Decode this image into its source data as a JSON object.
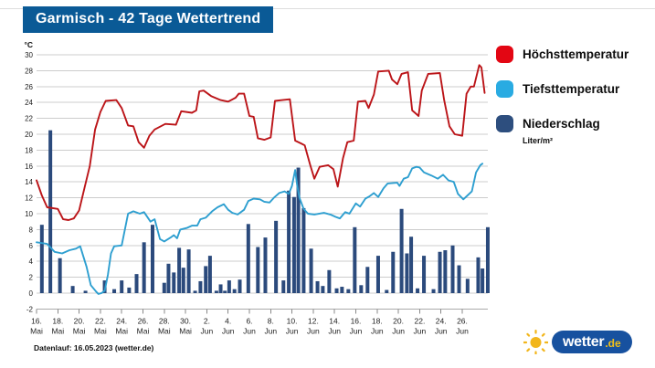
{
  "title": "Garmisch - 42 Tage Wettertrend",
  "footer": "Datenlauf: 16.05.2023 (wetter.de)",
  "logo": {
    "brand": "wetter",
    "tld": ".de",
    "pill_color": "#17519f",
    "sun_color": "#f2b61c"
  },
  "legend": {
    "items": [
      {
        "label": "Höchsttemperatur",
        "color": "#e30613"
      },
      {
        "label": "Tiefsttemperatur",
        "color": "#29abe2"
      },
      {
        "label": "Niederschlag",
        "color": "#2d4e7e"
      }
    ],
    "unit": "Liter/m²"
  },
  "chart_data": {
    "type": "line+bar",
    "title": "Garmisch - 42 Tage Wettertrend",
    "y_axis": {
      "unit": "°C",
      "min": -2,
      "max": 30,
      "tick_step": 2,
      "grid": true
    },
    "x_axis": {
      "tick_positions": [
        0,
        2,
        4,
        6,
        8,
        10,
        12,
        14,
        16,
        18,
        20,
        22,
        24,
        26,
        28,
        30,
        32,
        34,
        36,
        38,
        40
      ],
      "tick_labels": [
        [
          "16.",
          "Mai"
        ],
        [
          "18.",
          "Mai"
        ],
        [
          "20.",
          "Mai"
        ],
        [
          "22.",
          "Mai"
        ],
        [
          "24.",
          "Mai"
        ],
        [
          "26.",
          "Mai"
        ],
        [
          "28.",
          "Mai"
        ],
        [
          "30.",
          "Mai"
        ],
        [
          "2.",
          "Jun"
        ],
        [
          "4.",
          "Jun"
        ],
        [
          "6.",
          "Jun"
        ],
        [
          "8.",
          "Jun"
        ],
        [
          "10.",
          "Jun"
        ],
        [
          "12.",
          "Jun"
        ],
        [
          "14.",
          "Jun"
        ],
        [
          "16.",
          "Jun"
        ],
        [
          "18.",
          "Jun"
        ],
        [
          "20.",
          "Jun"
        ],
        [
          "22.",
          "Jun"
        ],
        [
          "24.",
          "Jun"
        ],
        [
          "26.",
          "Jun"
        ]
      ]
    },
    "series": [
      {
        "name": "Höchsttemperatur",
        "unit": "°C",
        "color": "#bb1418",
        "points": [
          [
            0,
            14.2
          ],
          [
            0.5,
            12.3
          ],
          [
            1,
            10.8
          ],
          [
            2,
            10.6
          ],
          [
            2.5,
            9.3
          ],
          [
            3,
            9.2
          ],
          [
            3.5,
            9.4
          ],
          [
            4,
            10.4
          ],
          [
            4.5,
            13.2
          ],
          [
            5,
            16.0
          ],
          [
            5.5,
            20.6
          ],
          [
            6,
            22.8
          ],
          [
            6.5,
            24.2
          ],
          [
            7.5,
            24.3
          ],
          [
            8,
            23.3
          ],
          [
            8.6,
            21.1
          ],
          [
            9.1,
            21.0
          ],
          [
            9.6,
            19.0
          ],
          [
            10.1,
            18.3
          ],
          [
            10.6,
            19.8
          ],
          [
            11.1,
            20.6
          ],
          [
            12.1,
            21.3
          ],
          [
            13.1,
            21.2
          ],
          [
            13.6,
            22.9
          ],
          [
            14.6,
            22.7
          ],
          [
            15.0,
            23.0
          ],
          [
            15.3,
            25.4
          ],
          [
            15.7,
            25.5
          ],
          [
            16.4,
            24.8
          ],
          [
            17.3,
            24.3
          ],
          [
            18,
            24.1
          ],
          [
            18.7,
            24.6
          ],
          [
            19,
            25.1
          ],
          [
            19.5,
            25.1
          ],
          [
            20,
            22.3
          ],
          [
            20.4,
            22.2
          ],
          [
            20.8,
            19.5
          ],
          [
            21.4,
            19.3
          ],
          [
            22,
            19.6
          ],
          [
            22.4,
            24.2
          ],
          [
            23.1,
            24.3
          ],
          [
            23.8,
            24.4
          ],
          [
            24.3,
            19.2
          ],
          [
            24.9,
            18.8
          ],
          [
            25.2,
            18.6
          ],
          [
            25.7,
            16.2
          ],
          [
            26.1,
            14.4
          ],
          [
            26.6,
            15.9
          ],
          [
            27.4,
            16.1
          ],
          [
            27.9,
            15.6
          ],
          [
            28.3,
            13.4
          ],
          [
            28.8,
            17.0
          ],
          [
            29.2,
            19.0
          ],
          [
            29.8,
            19.2
          ],
          [
            30.2,
            24.1
          ],
          [
            30.9,
            24.2
          ],
          [
            31.2,
            23.3
          ],
          [
            31.7,
            25.0
          ],
          [
            32.1,
            27.9
          ],
          [
            33.1,
            28.0
          ],
          [
            33.4,
            26.9
          ],
          [
            33.9,
            26.3
          ],
          [
            34.3,
            27.6
          ],
          [
            34.9,
            27.8
          ],
          [
            35.3,
            23.0
          ],
          [
            35.9,
            22.3
          ],
          [
            36.2,
            25.5
          ],
          [
            36.8,
            27.6
          ],
          [
            37.9,
            27.7
          ],
          [
            38.3,
            24.3
          ],
          [
            38.8,
            21.0
          ],
          [
            39.3,
            20.0
          ],
          [
            40,
            19.8
          ],
          [
            40.4,
            25.1
          ],
          [
            40.8,
            26.0
          ],
          [
            41.1,
            26.0
          ],
          [
            41.6,
            28.7
          ],
          [
            41.8,
            28.4
          ],
          [
            42.1,
            25.2
          ]
        ]
      },
      {
        "name": "Tiefsttemperatur",
        "unit": "°C",
        "color": "#2e9fd0",
        "points": [
          [
            0,
            6.4
          ],
          [
            1,
            6.2
          ],
          [
            1.7,
            5.2
          ],
          [
            2.4,
            5.0
          ],
          [
            3.1,
            5.4
          ],
          [
            3.7,
            5.6
          ],
          [
            4.1,
            5.9
          ],
          [
            4.7,
            3.3
          ],
          [
            5.1,
            1.0
          ],
          [
            5.6,
            0.2
          ],
          [
            5.8,
            -0.1
          ],
          [
            6.1,
            0.0
          ],
          [
            6.4,
            0.3
          ],
          [
            6.7,
            2.3
          ],
          [
            7,
            5.0
          ],
          [
            7.3,
            5.9
          ],
          [
            8,
            6.0
          ],
          [
            8.6,
            10.0
          ],
          [
            9.1,
            10.3
          ],
          [
            9.7,
            10.0
          ],
          [
            10.1,
            10.2
          ],
          [
            10.7,
            9.0
          ],
          [
            11.1,
            9.3
          ],
          [
            11.6,
            6.8
          ],
          [
            12,
            6.5
          ],
          [
            12.6,
            7.0
          ],
          [
            12.9,
            7.3
          ],
          [
            13.2,
            6.9
          ],
          [
            13.5,
            8.0
          ],
          [
            14.1,
            8.2
          ],
          [
            14.6,
            8.5
          ],
          [
            15.1,
            8.5
          ],
          [
            15.4,
            9.3
          ],
          [
            15.9,
            9.5
          ],
          [
            16.5,
            10.3
          ],
          [
            17,
            10.8
          ],
          [
            17.6,
            11.2
          ],
          [
            18,
            10.5
          ],
          [
            18.4,
            10.1
          ],
          [
            18.9,
            9.9
          ],
          [
            19.5,
            10.5
          ],
          [
            19.9,
            11.6
          ],
          [
            20.4,
            11.9
          ],
          [
            21,
            11.8
          ],
          [
            21.4,
            11.5
          ],
          [
            21.9,
            11.4
          ],
          [
            22.3,
            12.0
          ],
          [
            22.8,
            12.6
          ],
          [
            23.3,
            12.8
          ],
          [
            23.7,
            12.5
          ],
          [
            24,
            13.5
          ],
          [
            24.3,
            15.5
          ],
          [
            24.5,
            13.5
          ],
          [
            24.7,
            12.0
          ],
          [
            25.1,
            10.6
          ],
          [
            25.5,
            10.0
          ],
          [
            26.1,
            9.9
          ],
          [
            27,
            10.1
          ],
          [
            27.6,
            9.9
          ],
          [
            28.1,
            9.6
          ],
          [
            28.5,
            9.4
          ],
          [
            29,
            10.2
          ],
          [
            29.4,
            10.0
          ],
          [
            30,
            11.3
          ],
          [
            30.4,
            10.9
          ],
          [
            30.9,
            11.9
          ],
          [
            31.3,
            12.2
          ],
          [
            31.7,
            12.6
          ],
          [
            32.1,
            12.1
          ],
          [
            32.6,
            13.2
          ],
          [
            33,
            13.8
          ],
          [
            33.9,
            13.9
          ],
          [
            34.1,
            13.5
          ],
          [
            34.5,
            14.4
          ],
          [
            34.9,
            14.6
          ],
          [
            35.3,
            15.7
          ],
          [
            35.7,
            15.9
          ],
          [
            36,
            15.8
          ],
          [
            36.4,
            15.2
          ],
          [
            37.1,
            14.8
          ],
          [
            37.7,
            14.4
          ],
          [
            38.2,
            14.9
          ],
          [
            38.7,
            14.2
          ],
          [
            39.2,
            14.0
          ],
          [
            39.6,
            12.5
          ],
          [
            40.1,
            11.8
          ],
          [
            40.5,
            12.3
          ],
          [
            40.9,
            12.8
          ],
          [
            41.3,
            15.2
          ],
          [
            41.7,
            16.1
          ],
          [
            41.9,
            16.3
          ]
        ]
      }
    ],
    "bars": {
      "name": "Niederschlag",
      "unit": "Liter/m²",
      "color": "#2b4a7c",
      "points": [
        [
          0.5,
          8.6
        ],
        [
          1.3,
          20.5
        ],
        [
          2.2,
          4.4
        ],
        [
          3.4,
          0.9
        ],
        [
          4.6,
          0.3
        ],
        [
          6.4,
          1.6
        ],
        [
          7.3,
          0.5
        ],
        [
          8.0,
          1.6
        ],
        [
          8.7,
          0.7
        ],
        [
          9.4,
          2.4
        ],
        [
          10.1,
          6.4
        ],
        [
          10.9,
          8.6
        ],
        [
          12.0,
          1.3
        ],
        [
          12.4,
          3.7
        ],
        [
          12.9,
          2.6
        ],
        [
          13.4,
          5.7
        ],
        [
          13.8,
          3.2
        ],
        [
          14.3,
          5.5
        ],
        [
          14.9,
          0.3
        ],
        [
          15.4,
          1.5
        ],
        [
          15.9,
          3.4
        ],
        [
          16.3,
          4.7
        ],
        [
          16.9,
          0.3
        ],
        [
          17.3,
          1.1
        ],
        [
          17.7,
          0.3
        ],
        [
          18.1,
          1.6
        ],
        [
          18.6,
          0.5
        ],
        [
          19.1,
          1.7
        ],
        [
          19.9,
          8.7
        ],
        [
          20.8,
          5.8
        ],
        [
          21.5,
          7.0
        ],
        [
          22.5,
          9.1
        ],
        [
          23.2,
          1.6
        ],
        [
          23.7,
          12.9
        ],
        [
          24.2,
          12.1
        ],
        [
          24.6,
          15.8
        ],
        [
          25.1,
          10.7
        ],
        [
          25.8,
          5.6
        ],
        [
          26.4,
          1.5
        ],
        [
          26.9,
          0.9
        ],
        [
          27.5,
          2.9
        ],
        [
          28.2,
          0.6
        ],
        [
          28.7,
          0.8
        ],
        [
          29.3,
          0.5
        ],
        [
          29.9,
          8.3
        ],
        [
          30.5,
          1.0
        ],
        [
          31.1,
          3.3
        ],
        [
          32.1,
          4.7
        ],
        [
          32.9,
          0.4
        ],
        [
          33.5,
          5.2
        ],
        [
          34.3,
          10.6
        ],
        [
          34.8,
          5.0
        ],
        [
          35.2,
          7.1
        ],
        [
          35.8,
          0.6
        ],
        [
          36.4,
          4.7
        ],
        [
          37.3,
          0.5
        ],
        [
          37.9,
          5.2
        ],
        [
          38.4,
          5.4
        ],
        [
          39.1,
          6.0
        ],
        [
          39.7,
          3.5
        ],
        [
          40.5,
          1.8
        ],
        [
          41.5,
          4.5
        ],
        [
          41.9,
          3.1
        ],
        [
          42.4,
          8.3
        ]
      ]
    }
  }
}
